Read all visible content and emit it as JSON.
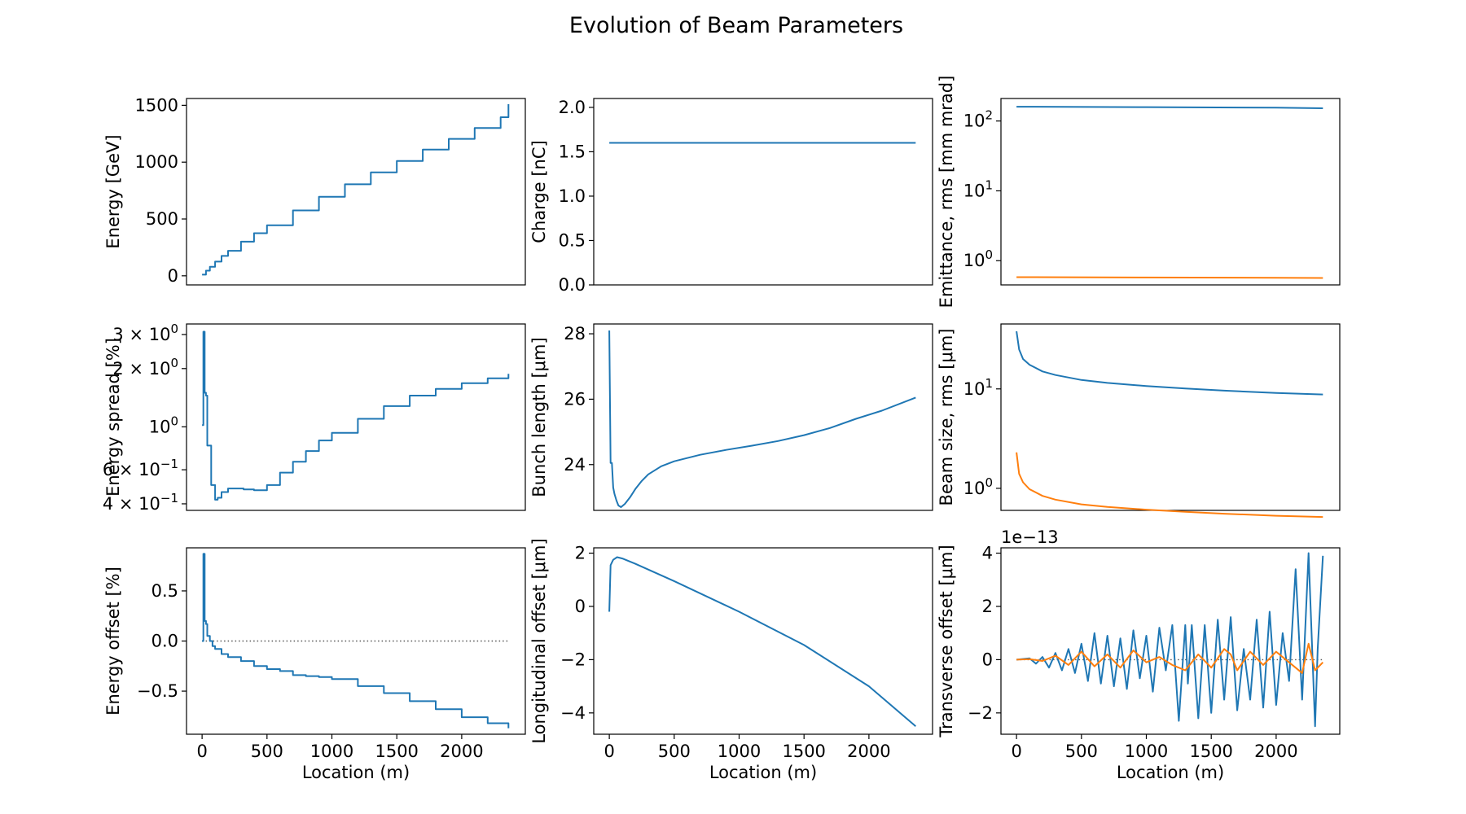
{
  "figure": {
    "title": "Evolution of Beam Parameters"
  },
  "colors": {
    "blue": "#1f77b4",
    "orange": "#ff7f0e",
    "reference": "#555555"
  },
  "chart_data": [
    {
      "type": "line",
      "xlabel": "",
      "ylabel": "Energy [GeV]",
      "xlim": [
        -120,
        2490
      ],
      "ylim": [
        -80,
        1560
      ],
      "yscale": "linear",
      "xticks": [],
      "yticks": [
        0,
        500,
        1000,
        1500
      ],
      "ytick_labels": [
        "0",
        "500",
        "1000",
        "1500"
      ],
      "series": [
        {
          "color": "#1f77b4",
          "x": [
            0,
            30,
            60,
            100,
            150,
            200,
            300,
            400,
            500,
            700,
            900,
            1100,
            1300,
            1500,
            1700,
            1900,
            2100,
            2300,
            2360
          ],
          "y": [
            10,
            45,
            80,
            125,
            175,
            220,
            300,
            375,
            445,
            575,
            695,
            805,
            910,
            1010,
            1110,
            1205,
            1300,
            1395,
            1510
          ],
          "step": true
        }
      ]
    },
    {
      "type": "line",
      "xlabel": "",
      "ylabel": "Charge [nC]",
      "xlim": [
        -120,
        2490
      ],
      "ylim": [
        0,
        2.1
      ],
      "yscale": "linear",
      "xticks": [],
      "yticks": [
        0.0,
        0.5,
        1.0,
        1.5,
        2.0
      ],
      "ytick_labels": [
        "0.0",
        "0.5",
        "1.0",
        "1.5",
        "2.0"
      ],
      "series": [
        {
          "color": "#1f77b4",
          "x": [
            0,
            2360
          ],
          "y": [
            1.6,
            1.6
          ]
        }
      ]
    },
    {
      "type": "line",
      "xlabel": "",
      "ylabel": "Emittance, rms [mm mrad]",
      "xlim": [
        -120,
        2490
      ],
      "ylim": [
        0.45,
        210
      ],
      "yscale": "log",
      "xticks": [],
      "yticks": [
        1,
        10,
        100
      ],
      "ytick_labels": [
        "10^0",
        "10^1",
        "10^2"
      ],
      "series": [
        {
          "color": "#1f77b4",
          "x": [
            0,
            1000,
            2000,
            2360
          ],
          "y": [
            160,
            158,
            155,
            152
          ]
        },
        {
          "color": "#ff7f0e",
          "x": [
            0,
            1000,
            2000,
            2360
          ],
          "y": [
            0.58,
            0.575,
            0.57,
            0.565
          ]
        }
      ]
    },
    {
      "type": "line",
      "xlabel": "",
      "ylabel": "Energy spread [%]",
      "xlim": [
        -120,
        2490
      ],
      "ylim": [
        0.37,
        3.4
      ],
      "yscale": "log",
      "xticks": [],
      "yticks": [
        0.4,
        0.6,
        1.0,
        2.0,
        3.0
      ],
      "ytick_labels": [
        "4 × 10^−1",
        "6 × 10^−1",
        "10^0",
        "2 × 10^0",
        "3 × 10^0"
      ],
      "series": [
        {
          "color": "#1f77b4",
          "x": [
            0,
            10,
            20,
            30,
            40,
            55,
            70,
            85,
            100,
            120,
            150,
            200,
            260,
            320,
            400,
            500,
            600,
            700,
            800,
            900,
            1000,
            1200,
            1400,
            1600,
            1800,
            2000,
            2200,
            2360
          ],
          "y": [
            1.02,
            3.1,
            1.5,
            1.45,
            0.8,
            0.8,
            0.5,
            0.5,
            0.42,
            0.43,
            0.46,
            0.48,
            0.48,
            0.475,
            0.47,
            0.5,
            0.58,
            0.66,
            0.75,
            0.85,
            0.93,
            1.1,
            1.28,
            1.45,
            1.57,
            1.68,
            1.78,
            1.88
          ],
          "step": true
        }
      ]
    },
    {
      "type": "line",
      "xlabel": "",
      "ylabel": "Bunch length [μm]",
      "xlim": [
        -120,
        2490
      ],
      "ylim": [
        22.6,
        28.3
      ],
      "yscale": "linear",
      "xticks": [],
      "yticks": [
        24,
        26,
        28
      ],
      "ytick_labels": [
        "24",
        "26",
        "28"
      ],
      "series": [
        {
          "color": "#1f77b4",
          "x": [
            0,
            10,
            20,
            30,
            40,
            55,
            70,
            90,
            120,
            160,
            200,
            250,
            300,
            400,
            500,
            700,
            900,
            1100,
            1300,
            1500,
            1700,
            1900,
            2100,
            2360
          ],
          "y": [
            28.1,
            24.05,
            24.05,
            23.3,
            23.1,
            22.9,
            22.75,
            22.7,
            22.8,
            23.0,
            23.25,
            23.5,
            23.7,
            23.95,
            24.1,
            24.3,
            24.45,
            24.58,
            24.72,
            24.9,
            25.12,
            25.4,
            25.65,
            26.05
          ]
        }
      ]
    },
    {
      "type": "line",
      "xlabel": "",
      "ylabel": "Beam size, rms [μm]",
      "xlim": [
        -120,
        2490
      ],
      "ylim": [
        0.6,
        45
      ],
      "yscale": "log",
      "xticks": [],
      "yticks": [
        1,
        10
      ],
      "ytick_labels": [
        "10^0",
        "10^1"
      ],
      "series": [
        {
          "color": "#1f77b4",
          "x": [
            0,
            20,
            50,
            100,
            200,
            300,
            500,
            700,
            1000,
            1300,
            1600,
            2000,
            2360
          ],
          "y": [
            38,
            25,
            20,
            17.5,
            15,
            13.8,
            12.3,
            11.5,
            10.7,
            10.1,
            9.6,
            9.1,
            8.8
          ]
        },
        {
          "color": "#ff7f0e",
          "x": [
            0,
            20,
            50,
            100,
            200,
            300,
            500,
            700,
            1000,
            1300,
            1600,
            2000,
            2360
          ],
          "y": [
            2.3,
            1.4,
            1.15,
            0.98,
            0.84,
            0.77,
            0.69,
            0.65,
            0.61,
            0.58,
            0.555,
            0.53,
            0.515
          ]
        }
      ]
    },
    {
      "type": "line",
      "xlabel": "Location (m)",
      "ylabel": "Energy offset [%]",
      "xlim": [
        -120,
        2490
      ],
      "ylim": [
        -0.93,
        0.93
      ],
      "yscale": "linear",
      "xticks": [
        0,
        500,
        1000,
        1500,
        2000
      ],
      "xtick_labels": [
        "0",
        "500",
        "1000",
        "1500",
        "2000"
      ],
      "yticks": [
        -0.5,
        0.0,
        0.5
      ],
      "ytick_labels": [
        "−0.5",
        "0.0",
        "0.5"
      ],
      "reference_line": {
        "y": 0.0,
        "x": [
          0,
          2360
        ]
      },
      "series": [
        {
          "color": "#1f77b4",
          "x": [
            0,
            10,
            20,
            30,
            40,
            60,
            80,
            100,
            150,
            200,
            300,
            400,
            500,
            600,
            700,
            800,
            900,
            1000,
            1200,
            1400,
            1600,
            1800,
            2000,
            2200,
            2360
          ],
          "y": [
            0.0,
            0.87,
            0.2,
            0.17,
            0.05,
            0.0,
            -0.05,
            -0.08,
            -0.13,
            -0.16,
            -0.2,
            -0.25,
            -0.28,
            -0.3,
            -0.34,
            -0.35,
            -0.36,
            -0.38,
            -0.45,
            -0.52,
            -0.6,
            -0.68,
            -0.76,
            -0.82,
            -0.87
          ],
          "step": true
        }
      ]
    },
    {
      "type": "line",
      "xlabel": "Location (m)",
      "ylabel": "Longitudinal offset [μm]",
      "xlim": [
        -120,
        2490
      ],
      "ylim": [
        -4.8,
        2.2
      ],
      "yscale": "linear",
      "xticks": [
        0,
        500,
        1000,
        1500,
        2000
      ],
      "xtick_labels": [
        "0",
        "500",
        "1000",
        "1500",
        "2000"
      ],
      "yticks": [
        -4,
        -2,
        0,
        2
      ],
      "ytick_labels": [
        "−4",
        "−2",
        "0",
        "2"
      ],
      "series": [
        {
          "color": "#1f77b4",
          "x": [
            0,
            10,
            30,
            60,
            100,
            200,
            500,
            1000,
            1500,
            2000,
            2360
          ],
          "y": [
            -0.2,
            1.55,
            1.75,
            1.85,
            1.8,
            1.6,
            0.95,
            -0.2,
            -1.45,
            -3.0,
            -4.5
          ]
        }
      ]
    },
    {
      "type": "line",
      "xlabel": "Location (m)",
      "ylabel": "Transverse offset [μm]",
      "offset_text": "1e−13",
      "xlim": [
        -120,
        2490
      ],
      "ylim": [
        -2.8,
        4.2
      ],
      "yscale": "linear",
      "xticks": [
        0,
        500,
        1000,
        1500,
        2000
      ],
      "xtick_labels": [
        "0",
        "500",
        "1000",
        "1500",
        "2000"
      ],
      "yticks": [
        -2,
        0,
        2,
        4
      ],
      "ytick_labels": [
        "−2",
        "0",
        "2",
        "4"
      ],
      "reference_line": {
        "y": 0.0,
        "x": [
          0,
          2360
        ]
      },
      "series": [
        {
          "color": "#1f77b4",
          "x": [
            0,
            100,
            150,
            200,
            250,
            300,
            350,
            400,
            450,
            500,
            550,
            600,
            650,
            700,
            750,
            800,
            850,
            900,
            950,
            1000,
            1050,
            1100,
            1150,
            1200,
            1250,
            1300,
            1320,
            1350,
            1400,
            1450,
            1500,
            1550,
            1600,
            1650,
            1700,
            1750,
            1800,
            1850,
            1900,
            1950,
            2000,
            2050,
            2100,
            2150,
            2200,
            2250,
            2300,
            2320,
            2360
          ],
          "y": [
            0,
            0.05,
            -0.15,
            0.1,
            -0.3,
            0.25,
            -0.4,
            0.4,
            -0.5,
            0.6,
            -0.8,
            1.0,
            -0.9,
            0.9,
            -1.0,
            0.8,
            -1.1,
            1.1,
            -0.7,
            0.9,
            -1.2,
            1.2,
            -0.4,
            1.3,
            -2.3,
            1.3,
            -0.9,
            1.3,
            -2.2,
            1.3,
            -2.0,
            1.5,
            -1.5,
            1.6,
            -1.9,
            0.4,
            -1.5,
            1.5,
            -1.8,
            1.8,
            -1.7,
            1.0,
            -0.8,
            3.4,
            -1.5,
            4.0,
            -2.5,
            0.4,
            3.9
          ]
        },
        {
          "color": "#ff7f0e",
          "x": [
            0,
            100,
            200,
            300,
            400,
            500,
            600,
            700,
            800,
            900,
            1000,
            1100,
            1200,
            1300,
            1400,
            1500,
            1600,
            1650,
            1700,
            1800,
            1900,
            2000,
            2100,
            2200,
            2250,
            2300,
            2360
          ],
          "y": [
            0,
            0.02,
            -0.05,
            0.15,
            -0.2,
            0.3,
            -0.25,
            0.2,
            -0.3,
            0.35,
            -0.1,
            0.1,
            -0.2,
            -0.4,
            0.2,
            -0.3,
            0.4,
            0.2,
            -0.4,
            0.3,
            -0.2,
            0.3,
            -0.1,
            -0.5,
            0.6,
            -0.4,
            -0.1
          ]
        }
      ]
    }
  ]
}
